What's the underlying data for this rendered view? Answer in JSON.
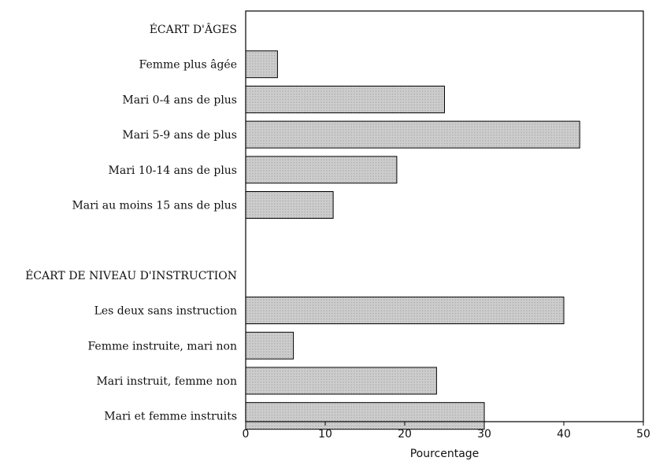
{
  "chart_data": {
    "type": "bar",
    "orientation": "horizontal",
    "xlabel": "Pourcentage",
    "xlim": [
      0,
      50
    ],
    "xticks": [
      0,
      10,
      20,
      30,
      40,
      50
    ],
    "grid": false,
    "legend": "none",
    "bar_fill": "#d0d0d0",
    "bar_pattern": "stippled",
    "rows": [
      {
        "kind": "header",
        "label": "ÉCART D'ÂGES"
      },
      {
        "kind": "bar",
        "label": "Femme plus âgée",
        "value": 4
      },
      {
        "kind": "bar",
        "label": "Mari  0-4 ans de plus",
        "value": 25
      },
      {
        "kind": "bar",
        "label": "Mari 5-9 ans de plus",
        "value": 42
      },
      {
        "kind": "bar",
        "label": "Mari 10-14 ans de plus",
        "value": 19
      },
      {
        "kind": "bar",
        "label": "Mari au moins 15 ans de plus",
        "value": 11
      },
      {
        "kind": "spacer",
        "label": ""
      },
      {
        "kind": "header",
        "label": "ÉCART DE NIVEAU D'INSTRUCTION"
      },
      {
        "kind": "bar",
        "label": "Les deux sans instruction",
        "value": 40
      },
      {
        "kind": "bar",
        "label": "Femme instruite, mari non",
        "value": 6
      },
      {
        "kind": "bar",
        "label": "Mari instruit, femme non ",
        "value": 24
      },
      {
        "kind": "bar",
        "label": "Mari et femme instruits",
        "value": 30
      }
    ]
  }
}
